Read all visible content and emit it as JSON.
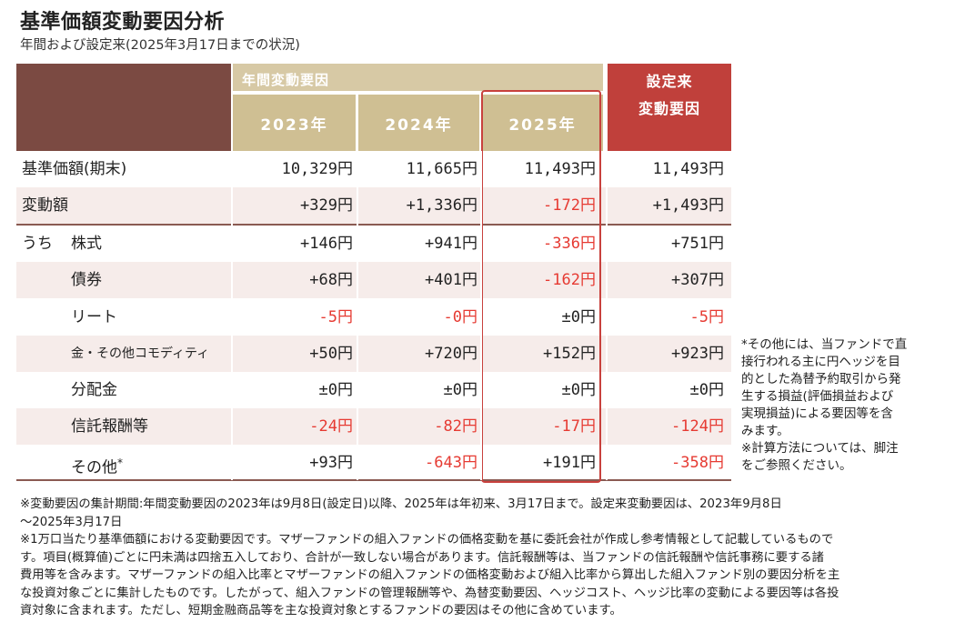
{
  "title": "基準価額変動要因分析",
  "subtitle": "年間および設定来(2025年3月17日までの状況)",
  "header": {
    "annual_label": "年間変動要因",
    "years": [
      "2023年",
      "2024年",
      "2025年"
    ],
    "since_line1": "設定来",
    "since_line2": "変動要因"
  },
  "rows": [
    {
      "label": "基準価額(期末)",
      "values": [
        "10,329円",
        "11,665円",
        "11,493円",
        "11,493円"
      ]
    },
    {
      "label": "変動額",
      "values": [
        "+329円",
        "+1,336円",
        "-172円",
        "+1,493円"
      ]
    },
    {
      "prefix": "うち",
      "label": "株式",
      "values": [
        "+146円",
        "+941円",
        "-336円",
        "+751円"
      ]
    },
    {
      "label": "債券",
      "values": [
        "+68円",
        "+401円",
        "-162円",
        "+307円"
      ]
    },
    {
      "label": "リート",
      "values": [
        "-5円",
        "-0円",
        "±0円",
        "-5円"
      ]
    },
    {
      "label": "金・その他コモディティ",
      "values": [
        "+50円",
        "+720円",
        "+152円",
        "+923円"
      ]
    },
    {
      "label": "分配金",
      "values": [
        "±0円",
        "±0円",
        "±0円",
        "±0円"
      ]
    },
    {
      "label": "信託報酬等",
      "values": [
        "-24円",
        "-82円",
        "-17円",
        "-124円"
      ]
    },
    {
      "label": "その他",
      "label_sup": "*",
      "values": [
        "+93円",
        "-643円",
        "+191円",
        "-358円"
      ]
    }
  ],
  "colors": {
    "negative": "#e63a32",
    "highlight_border": "#c8413d",
    "header_dark": "#7b4a42",
    "header_gold": "#cfbf93",
    "header_red": "#c0403b"
  },
  "side_note": [
    "*その他には、当ファンドで直",
    "接行われる主に円ヘッジを目",
    "的とした為替予約取引から発",
    "生する損益(評価損益および",
    "実現損益)による要因等を含",
    "みます。",
    "※計算方法については、脚注",
    "をご参照ください。"
  ],
  "footnotes": [
    "※変動要因の集計期間:年間変動要因の2023年は9月8日(設定日)以降、2025年は年初来、3月17日まで。設定来変動要因は、2023年9月8日",
    "〜2025年3月17日",
    "※1万口当たり基準価額における変動要因です。マザーファンドの組入ファンドの価格変動を基に委託会社が作成し参考情報として記載しているもので",
    "す。項目(概算値)ごとに円未満は四捨五入しており、合計が一致しない場合があります。信託報酬等は、当ファンドの信託報酬や信託事務に要する諸",
    "費用等を含みます。マザーファンドの組入比率とマザーファンドの組入ファンドの価格変動および組入比率から算出した組入ファンド別の要因分析を主",
    "な投資対象ごとに集計したものです。したがって、組入ファンドの管理報酬等や、為替変動要因、ヘッジコスト、ヘッジ比率の変動による要因等は各投",
    "資対象に含まれます。ただし、短期金融商品等を主な投資対象とするファンドの要因はその他に含めています。"
  ]
}
